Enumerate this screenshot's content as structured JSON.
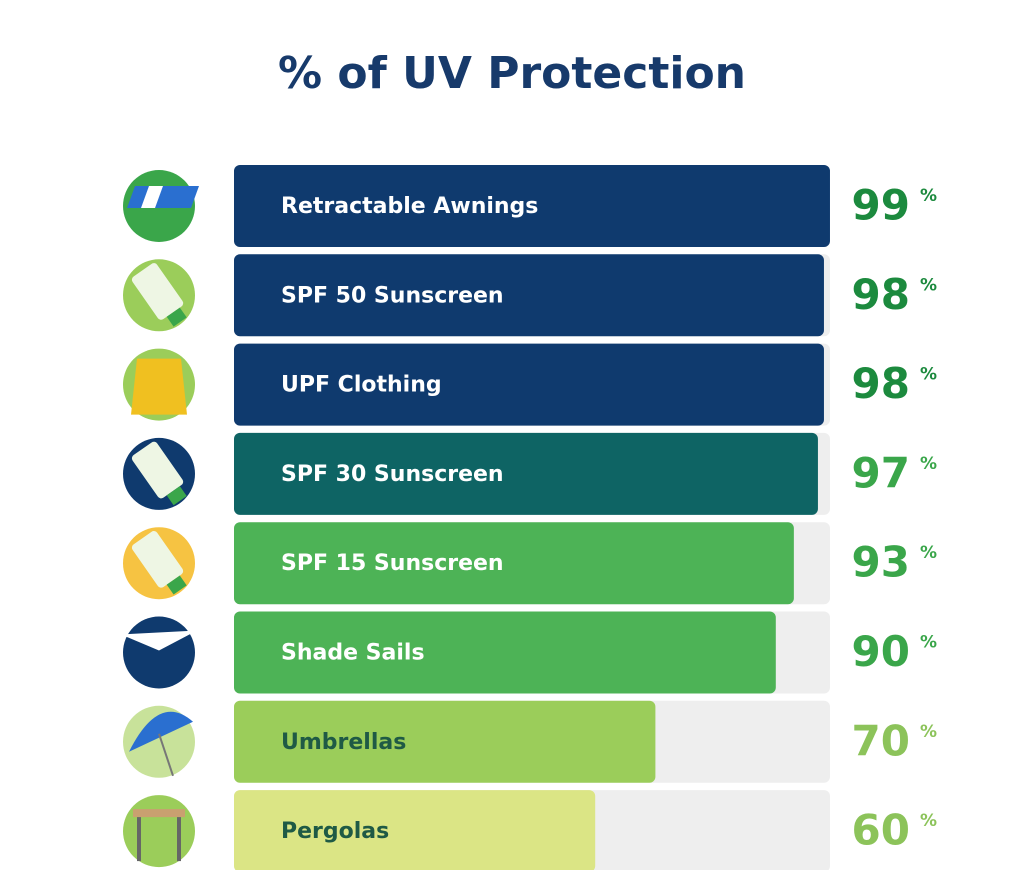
{
  "chart_data": {
    "type": "hbar",
    "title": "% of UV Protection",
    "categories": [
      "Retractable Awnings",
      "SPF 50 Sunscreen",
      "UPF Clothing",
      "SPF 30 Sunscreen",
      "SPF 15 Sunscreen",
      "Shade Sails",
      "Umbrellas",
      "Pergolas"
    ],
    "values": [
      99,
      98,
      98,
      97,
      93,
      90,
      70,
      60
    ],
    "value_unit": "%",
    "colors": [
      "#0f3a6e",
      "#0f3a6e",
      "#0f3a6e",
      "#0e6464",
      "#4db356",
      "#4db356",
      "#9bcd5a",
      "#dbe585"
    ],
    "label_colors": [
      "#ffffff",
      "#ffffff",
      "#ffffff",
      "#ffffff",
      "#ffffff",
      "#ffffff",
      "#1f5a45",
      "#1f5a45"
    ],
    "value_colors": [
      "#1c8a3e",
      "#1c8a3e",
      "#1c8a3e",
      "#3aa64a",
      "#3aa64a",
      "#3aa64a",
      "#8cc35a",
      "#8cc35a"
    ],
    "track_color": "#eeeeee",
    "xlim": [
      0,
      100
    ]
  }
}
